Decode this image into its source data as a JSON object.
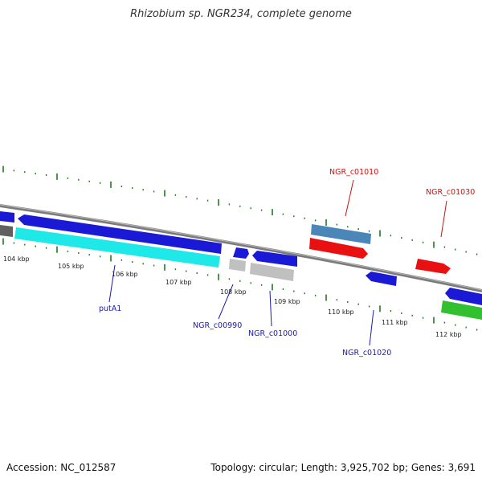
{
  "title": "Rhizobium sp. NGR234, complete genome",
  "footer": {
    "accession": "Accession: NC_012587",
    "topology": "Topology: circular; Length: 3,925,702 bp; Genes: 3,691"
  },
  "scale_labels": [
    "104 kbp",
    "105 kbp",
    "106 kbp",
    "107 kbp",
    "108 kbp",
    "109 kbp",
    "110 kbp",
    "111 kbp",
    "112 kbp"
  ],
  "gene_labels": {
    "putA1": "putA1",
    "NGR_c00990": "NGR_c00990",
    "NGR_c01000": "NGR_c01000",
    "NGR_c01010": "NGR_c01010",
    "NGR_c01020": "NGR_c01020",
    "NGR_c01030": "NGR_c01030"
  },
  "colors": {
    "backbone": "#808080",
    "tick": "#1e7a1e",
    "forward_cds": "#1a1ad6",
    "reverse_cds": "#1a1ad6",
    "cyan_feature": "#1ee8e8",
    "steelblue_feature": "#4a86b8",
    "red_feature": "#e81010",
    "grey_feature": "#c0c0c0",
    "green_feature": "#30c030",
    "label_blue": "#1a1ab0",
    "label_red": "#d01010"
  }
}
